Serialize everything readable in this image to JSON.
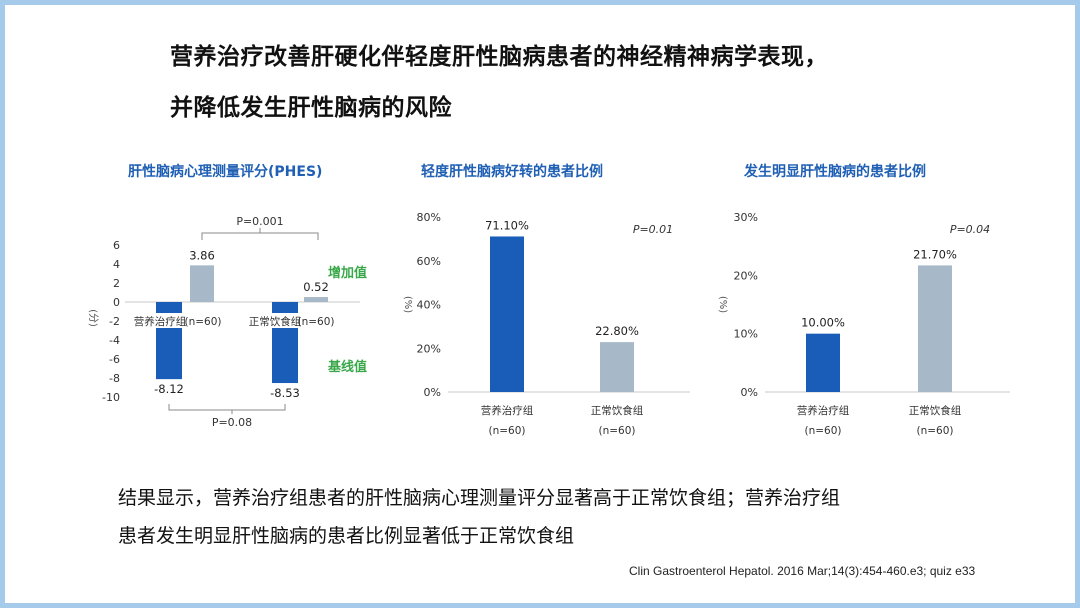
{
  "slide": {
    "title_line1": "营养治疗改善肝硬化伴轻度肝性脑病患者的神经精神病学表现，",
    "title_line2": "并降低发生肝性脑病的风险",
    "result_line1": "结果显示，营养治疗组患者的肝性脑病心理测量评分显著高于正常饮食组；营养治疗组",
    "result_line2": "患者发生明显肝性脑病的患者比例显著低于正常饮食组",
    "citation": "Clin Gastroenterol Hepatol. 2016 Mar;14(3):454-460.e3; quiz e33"
  },
  "colors": {
    "dark_bar": "#1a5db8",
    "light_bar": "#a7b8c8",
    "title_blue": "#1f5fb4",
    "green_label": "#3aa84a",
    "border": "#a6cbea"
  },
  "chart_data": [
    {
      "type": "bar",
      "title": "肝性脑病心理测量评分(PHES)",
      "ylabel": "(分)",
      "ylim": [
        -10,
        6
      ],
      "yticks": [
        "6",
        "4",
        "2",
        "0",
        "-2",
        "-4",
        "-6",
        "-8",
        "-10"
      ],
      "categories": [
        "营养治疗组",
        "正常饮食组"
      ],
      "category_n": [
        "(n=60)",
        "(n=60)"
      ],
      "series": [
        {
          "name": "增加值",
          "values": [
            3.86,
            0.52
          ],
          "labels": [
            "3.86",
            "0.52"
          ]
        },
        {
          "name": "基线值",
          "values": [
            -8.12,
            -8.53
          ],
          "labels": [
            "-8.12",
            "-8.53"
          ]
        }
      ],
      "p_top": "P=0.001",
      "p_bottom": "P=0.08"
    },
    {
      "type": "bar",
      "title": "轻度肝性脑病好转的患者比例",
      "ylabel": "(%)",
      "ylim": [
        0,
        80
      ],
      "yticks": [
        "80%",
        "60%",
        "40%",
        "20%",
        "0%"
      ],
      "categories": [
        "营养治疗组",
        "正常饮食组"
      ],
      "category_n": [
        "(n=60)",
        "(n=60)"
      ],
      "values": [
        71.1,
        22.8
      ],
      "labels": [
        "71.10%",
        "22.80%"
      ],
      "p": "P=0.01"
    },
    {
      "type": "bar",
      "title": "发生明显肝性脑病的患者比例",
      "ylabel": "(%)",
      "ylim": [
        0,
        30
      ],
      "yticks": [
        "30%",
        "20%",
        "10%",
        "0%"
      ],
      "categories": [
        "营养治疗组",
        "正常饮食组"
      ],
      "category_n": [
        "(n=60)",
        "(n=60)"
      ],
      "values": [
        10.0,
        21.7
      ],
      "labels": [
        "10.00%",
        "21.70%"
      ],
      "p": "P=0.04"
    }
  ]
}
